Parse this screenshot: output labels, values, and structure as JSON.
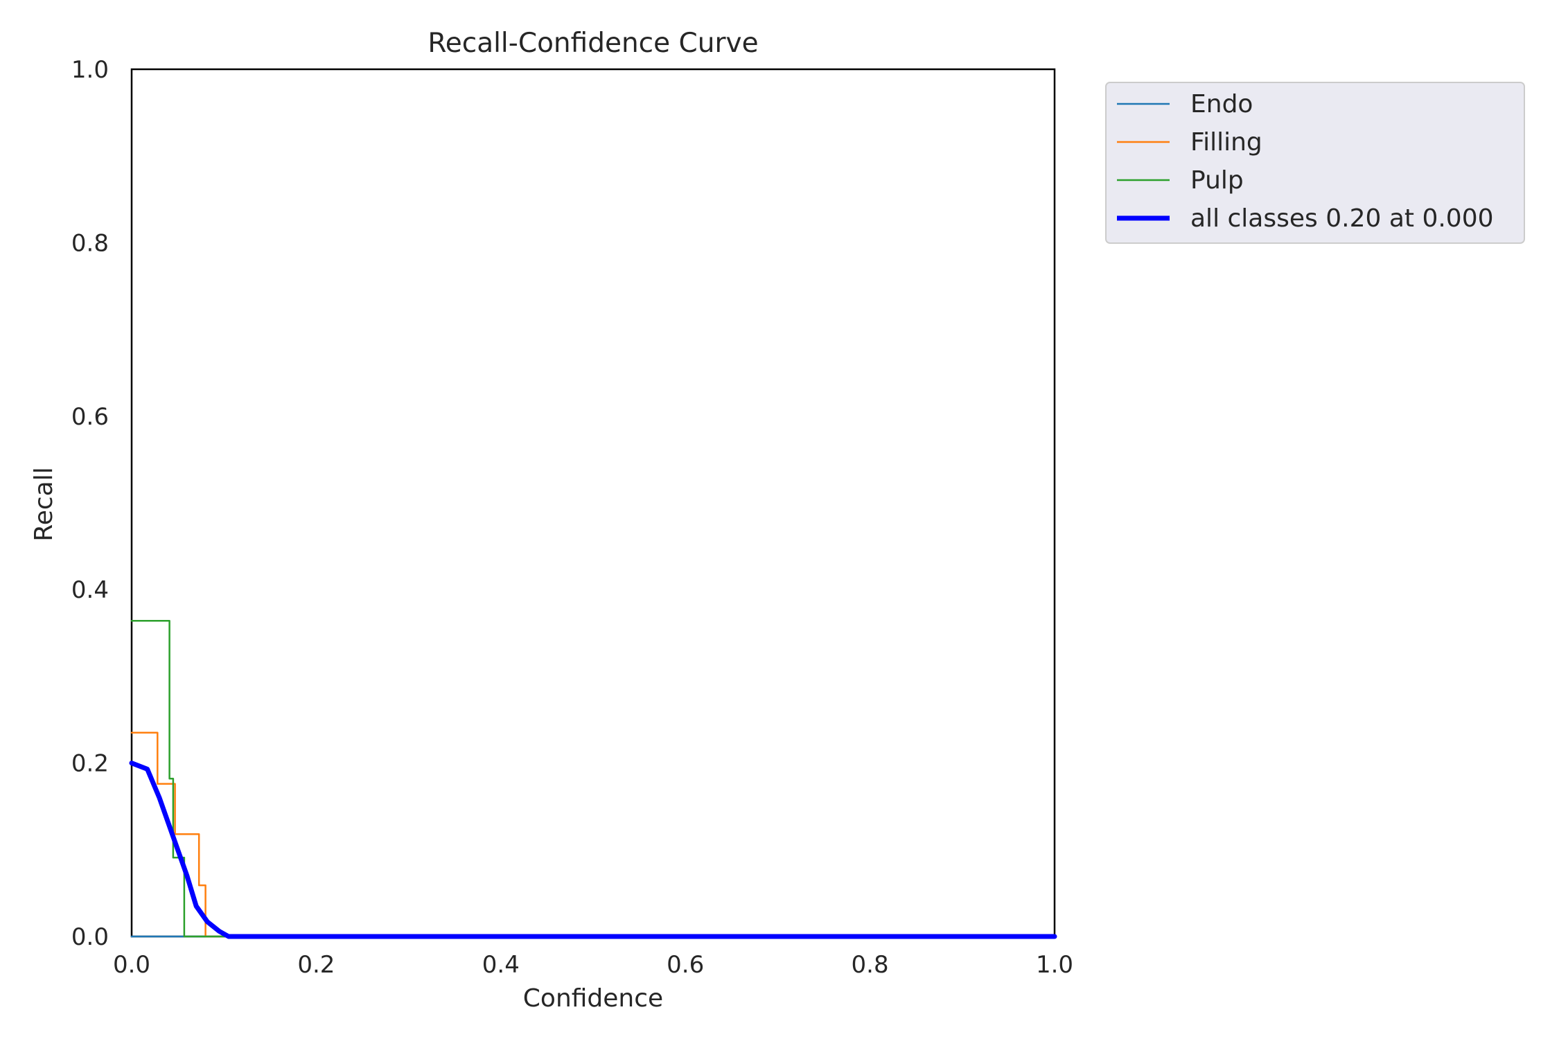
{
  "chart_data": {
    "type": "line",
    "title": "Recall-Confidence Curve",
    "xlabel": "Confidence",
    "ylabel": "Recall",
    "xlim": [
      0.0,
      1.0
    ],
    "ylim": [
      0.0,
      1.0
    ],
    "xticks": [
      "0.0",
      "0.2",
      "0.4",
      "0.6",
      "0.8",
      "1.0"
    ],
    "yticks": [
      "0.0",
      "0.2",
      "0.4",
      "0.6",
      "0.8",
      "1.0"
    ],
    "grid": false,
    "legend_position": "outside-upper-right",
    "series": [
      {
        "name": "Endo",
        "color": "#1f77b4",
        "style": "thin",
        "x": [
          0.0,
          1.0
        ],
        "y": [
          0.0,
          0.0
        ]
      },
      {
        "name": "Filling",
        "color": "#ff7f0e",
        "style": "thin",
        "x": [
          0.0,
          0.028,
          0.028,
          0.047,
          0.047,
          0.073,
          0.073,
          0.08,
          0.08,
          0.082,
          0.082,
          1.0
        ],
        "y": [
          0.235,
          0.235,
          0.176,
          0.176,
          0.118,
          0.118,
          0.059,
          0.059,
          0.0,
          0.0,
          0.0,
          0.0
        ]
      },
      {
        "name": "Pulp",
        "color": "#2ca02c",
        "style": "thin",
        "x": [
          0.0,
          0.041,
          0.041,
          0.045,
          0.045,
          0.05,
          0.05,
          0.057,
          0.057,
          1.0
        ],
        "y": [
          0.364,
          0.364,
          0.182,
          0.182,
          0.091,
          0.091,
          0.091,
          0.091,
          0.0,
          0.0
        ],
        "smooth_drop": true
      },
      {
        "name": "all classes 0.20 at 0.000",
        "color": "#0000ff",
        "style": "thick",
        "x": [
          0.0,
          0.017,
          0.03,
          0.045,
          0.06,
          0.07,
          0.082,
          0.095,
          0.105,
          0.12,
          1.0
        ],
        "y": [
          0.2,
          0.193,
          0.16,
          0.115,
          0.07,
          0.035,
          0.017,
          0.006,
          0.0,
          0.0,
          0.0
        ]
      }
    ]
  }
}
